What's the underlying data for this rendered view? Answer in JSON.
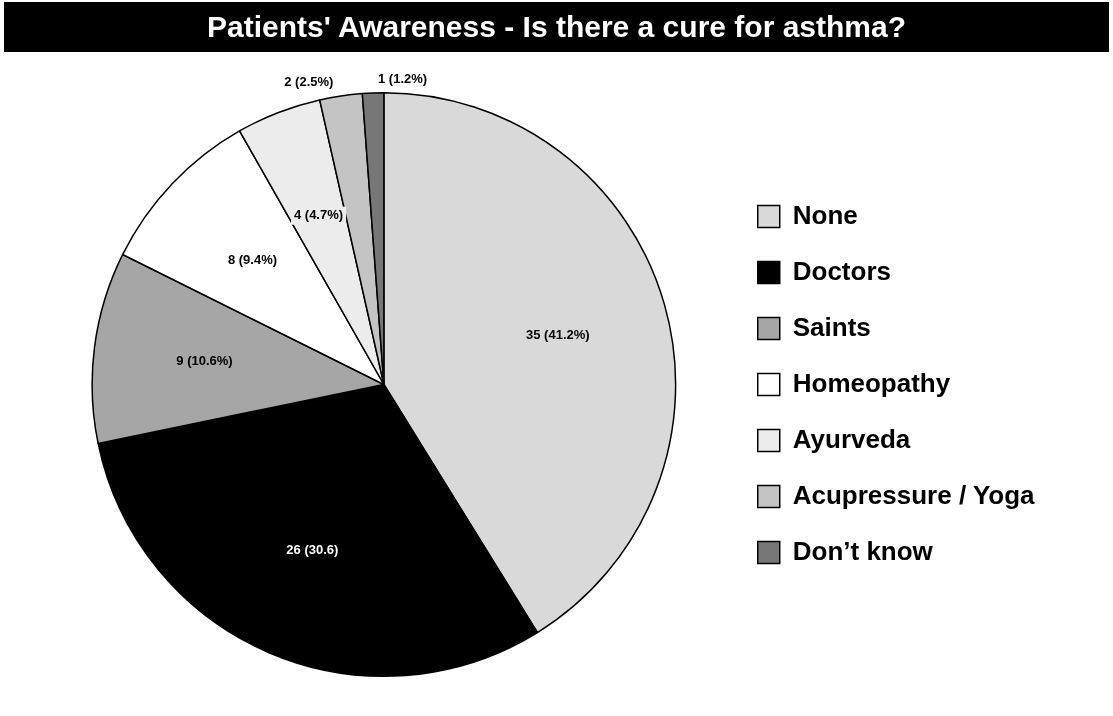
{
  "chart_data": {
    "type": "pie",
    "title": "Patients' Awareness - Is there a cure for asthma?",
    "categories": [
      "None",
      "Doctors",
      "Saints",
      "Homeopathy",
      "Ayurveda",
      "Acupressure / Yoga",
      "Don’t know"
    ],
    "values": [
      35,
      26,
      9,
      8,
      4,
      2,
      1
    ],
    "colors": [
      "#d9d9d9",
      "#000000",
      "#a6a6a6",
      "#ffffff",
      "#ececec",
      "#c4c4c4",
      "#777777"
    ],
    "value_labels": [
      "35 (41.2%)",
      "26 (30.6)",
      "9 (10.6%)",
      "8 (9.4%)",
      "4 (4.7%)",
      "2 (2.5%)",
      "1 (1.2%)"
    ],
    "legend": "right"
  }
}
